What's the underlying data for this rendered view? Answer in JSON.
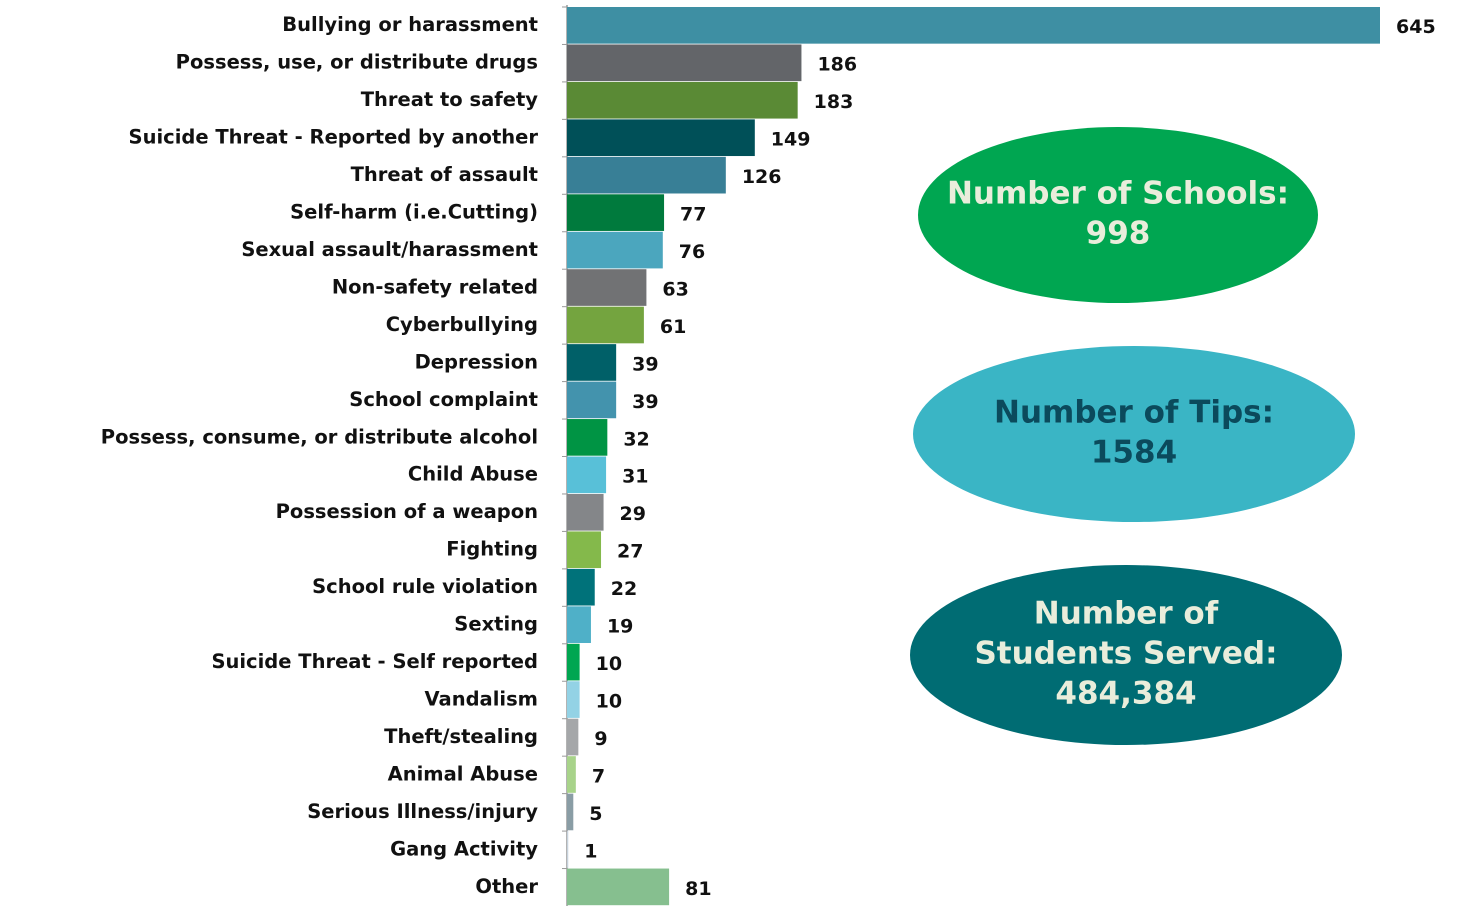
{
  "chart_data": {
    "type": "bar",
    "orientation": "horizontal",
    "categories": [
      "Bullying or harassment",
      "Possess, use, or distribute drugs",
      "Threat to safety",
      "Suicide Threat - Reported by another",
      "Threat of assault",
      "Self-harm (i.e.Cutting)",
      "Sexual assault/harassment",
      "Non-safety related",
      "Cyberbullying",
      "Depression",
      "School complaint",
      "Possess, consume, or distribute alcohol",
      "Child Abuse",
      "Possession of a weapon",
      "Fighting",
      "School rule violation",
      "Sexting",
      "Suicide Threat - Self reported",
      "Vandalism",
      "Theft/stealing",
      "Animal Abuse",
      "Serious Illness/injury",
      "Gang Activity",
      "Other"
    ],
    "values": [
      645,
      186,
      183,
      149,
      126,
      77,
      76,
      63,
      61,
      39,
      39,
      32,
      31,
      29,
      27,
      22,
      19,
      10,
      10,
      9,
      7,
      5,
      1,
      81
    ],
    "colors": [
      "#3e8fa3",
      "#636569",
      "#5a8a35",
      "#005058",
      "#387f96",
      "#007a3d",
      "#4ba6be",
      "#717274",
      "#74a43f",
      "#006068",
      "#4393ad",
      "#009444",
      "#58c0d8",
      "#848689",
      "#84b94b",
      "#00727a",
      "#4fb0c8",
      "#00a651",
      "#93d2e5",
      "#a5a7a9",
      "#a8d38a",
      "#8a9da5",
      "#c7d2dc",
      "#86bf8f"
    ]
  },
  "stats": [
    {
      "lines": [
        "Number of Schools:",
        "998"
      ],
      "color": "#00a651",
      "text_color": "#e9eddb"
    },
    {
      "lines": [
        "Number of Tips:",
        "1584"
      ],
      "color": "#3ab5c5",
      "text_color": "#0b4a5c"
    },
    {
      "lines": [
        "Number of",
        "Students Served:",
        "484,384"
      ],
      "color": "#006c73",
      "text_color": "#e9eddb"
    }
  ]
}
